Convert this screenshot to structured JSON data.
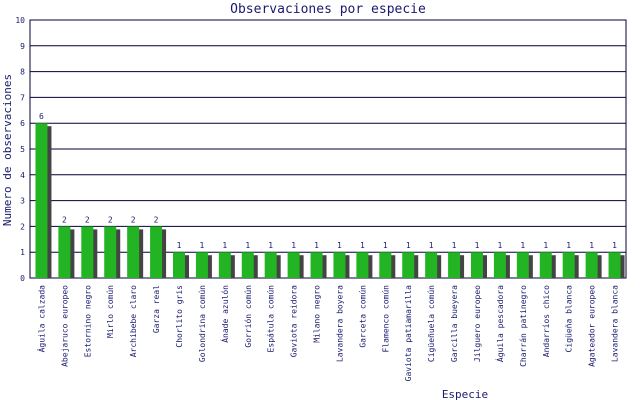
{
  "chart_data": {
    "type": "bar",
    "title": "Observaciones por especie",
    "x_label": "Especie",
    "y_label": "Numero de observaciones",
    "categories": [
      "Águila calzada",
      "Abejaruco europeo",
      "Estornino negro",
      "Mirlo común",
      "Archibebe claro",
      "Garza real",
      "Chorlito gris",
      "Golondrina común",
      "Ánade azulón",
      "Gorrión común",
      "Espátula común",
      "Gaviota reidora",
      "Milano negro",
      "Lavandera boyera",
      "Garceta común",
      "Flamenco común",
      "Gaviota patiamarilla",
      "Cigüeñuela común",
      "Garcilla bueyera",
      "Jilguero europeo",
      "Águila pescadora",
      "Charrán patinegro",
      "Andarríos chico",
      "Cigüeña blanca",
      "Agateador europeo",
      "Lavandera blanca"
    ],
    "values": [
      6,
      2,
      2,
      2,
      2,
      2,
      1,
      1,
      1,
      1,
      1,
      1,
      1,
      1,
      1,
      1,
      1,
      1,
      1,
      1,
      1,
      1,
      1,
      1,
      1,
      1
    ],
    "color": "#22b422",
    "shadow_color": "#444444",
    "ylim": [
      0,
      10
    ],
    "yticks": [
      0,
      1,
      2,
      3,
      4,
      5,
      6,
      7,
      8,
      9,
      10
    ],
    "grid": true
  }
}
